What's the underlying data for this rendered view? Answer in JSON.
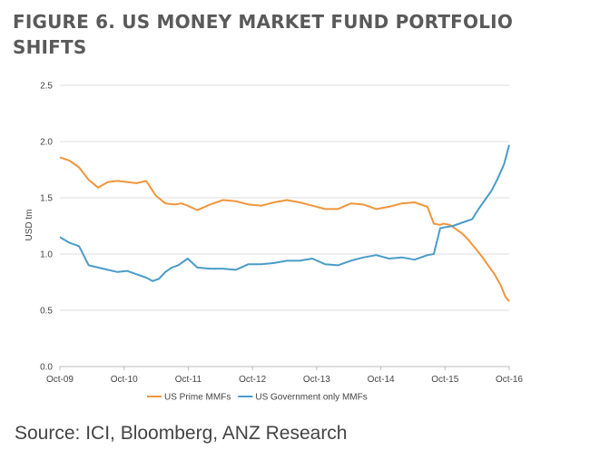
{
  "figure_title": "FIGURE 6. US MONEY MARKET FUND PORTFOLIO SHIFTS",
  "source": "Source: ICI, Bloomberg, ANZ Research",
  "chart_data": {
    "type": "line",
    "ylabel": "USD tm",
    "ylim": [
      0,
      2.5
    ],
    "y_ticks": [
      "0.0",
      "0.5",
      "1.0",
      "1.5",
      "2.0",
      "2.5"
    ],
    "x_ticks": [
      "Oct-09",
      "Oct-10",
      "Oct-11",
      "Oct-12",
      "Oct-13",
      "Oct-14",
      "Oct-15",
      "Oct-16"
    ],
    "grid": "horizontal",
    "legend_position": "bottom",
    "series": [
      {
        "name": "US Prime MMFs",
        "color": "#F0963C",
        "x": [
          2009.75,
          2009.9,
          2010.05,
          2010.2,
          2010.35,
          2010.5,
          2010.65,
          2010.8,
          2010.95,
          2011.1,
          2011.25,
          2011.4,
          2011.55,
          2011.65,
          2011.75,
          2011.9,
          2012.1,
          2012.3,
          2012.5,
          2012.7,
          2012.9,
          2013.1,
          2013.3,
          2013.5,
          2013.7,
          2013.9,
          2014.1,
          2014.3,
          2014.5,
          2014.7,
          2014.9,
          2015.1,
          2015.3,
          2015.5,
          2015.6,
          2015.7,
          2015.75,
          2015.85,
          2015.95,
          2016.05,
          2016.15,
          2016.25,
          2016.35,
          2016.45,
          2016.55,
          2016.65,
          2016.72,
          2016.78
        ],
        "values": [
          1.86,
          1.83,
          1.77,
          1.66,
          1.59,
          1.64,
          1.65,
          1.64,
          1.63,
          1.65,
          1.52,
          1.45,
          1.44,
          1.45,
          1.43,
          1.39,
          1.44,
          1.48,
          1.47,
          1.44,
          1.43,
          1.46,
          1.48,
          1.46,
          1.43,
          1.4,
          1.4,
          1.45,
          1.44,
          1.4,
          1.42,
          1.45,
          1.46,
          1.42,
          1.27,
          1.26,
          1.27,
          1.26,
          1.22,
          1.18,
          1.12,
          1.05,
          0.98,
          0.9,
          0.82,
          0.72,
          0.62,
          0.58
        ]
      },
      {
        "name": "US Government only MMFs",
        "color": "#4A9CC8",
        "x": [
          2009.75,
          2009.9,
          2010.05,
          2010.2,
          2010.35,
          2010.5,
          2010.65,
          2010.8,
          2010.95,
          2011.1,
          2011.2,
          2011.3,
          2011.4,
          2011.5,
          2011.6,
          2011.75,
          2011.9,
          2012.1,
          2012.3,
          2012.5,
          2012.7,
          2012.9,
          2013.1,
          2013.3,
          2013.5,
          2013.7,
          2013.9,
          2014.1,
          2014.3,
          2014.5,
          2014.7,
          2014.9,
          2015.1,
          2015.3,
          2015.5,
          2015.6,
          2015.7,
          2015.8,
          2015.9,
          2016.0,
          2016.1,
          2016.2,
          2016.3,
          2016.4,
          2016.5,
          2016.6,
          2016.7,
          2016.78
        ],
        "values": [
          1.15,
          1.1,
          1.07,
          0.9,
          0.88,
          0.86,
          0.84,
          0.85,
          0.82,
          0.79,
          0.76,
          0.78,
          0.84,
          0.88,
          0.9,
          0.96,
          0.88,
          0.87,
          0.87,
          0.86,
          0.91,
          0.91,
          0.92,
          0.94,
          0.94,
          0.96,
          0.91,
          0.9,
          0.94,
          0.97,
          0.99,
          0.96,
          0.97,
          0.95,
          0.99,
          1.0,
          1.23,
          1.24,
          1.25,
          1.27,
          1.29,
          1.31,
          1.4,
          1.48,
          1.56,
          1.67,
          1.8,
          1.97
        ]
      }
    ]
  }
}
